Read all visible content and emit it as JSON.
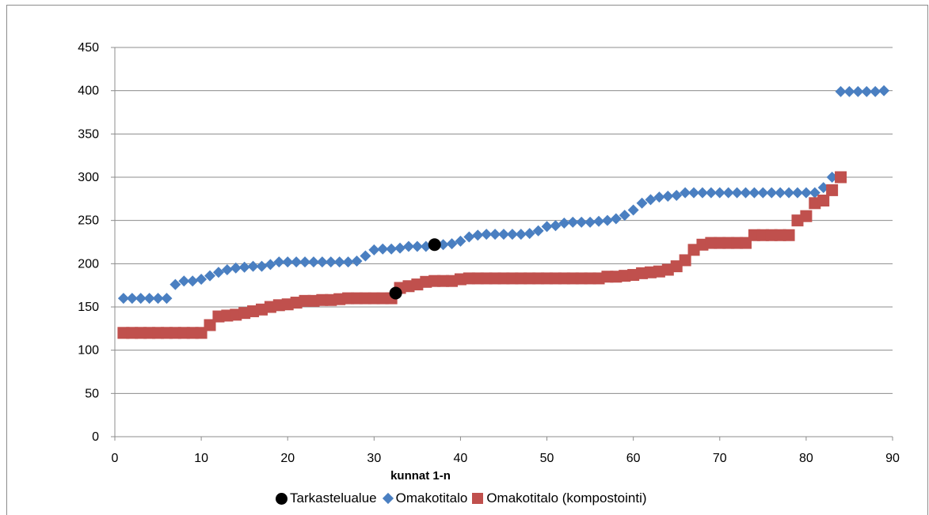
{
  "chart_data": {
    "type": "scatter",
    "xlabel": "kunnat 1-n",
    "ylabel": "",
    "xlim": [
      0,
      90
    ],
    "ylim": [
      0,
      450
    ],
    "x_ticks": [
      0,
      10,
      20,
      30,
      40,
      50,
      60,
      70,
      80,
      90
    ],
    "y_ticks": [
      0,
      50,
      100,
      150,
      200,
      250,
      300,
      350,
      400,
      450
    ],
    "grid": "horizontal",
    "legend_position": "bottom",
    "colors": {
      "Tarkastelualue": "#000000",
      "Omakotitalo": "#4a7fc1",
      "Omakotitalo (kompostointi)": "#c0504d",
      "grid": "#8c8c8c"
    },
    "series": [
      {
        "name": "Omakotitalo",
        "marker": "diamond",
        "points": [
          [
            1,
            160
          ],
          [
            2,
            160
          ],
          [
            3,
            160
          ],
          [
            4,
            160
          ],
          [
            5,
            160
          ],
          [
            6,
            160
          ],
          [
            7,
            176
          ],
          [
            8,
            180
          ],
          [
            9,
            180
          ],
          [
            10,
            182
          ],
          [
            11,
            186
          ],
          [
            12,
            190
          ],
          [
            13,
            193
          ],
          [
            14,
            195
          ],
          [
            15,
            196
          ],
          [
            16,
            197
          ],
          [
            17,
            197
          ],
          [
            18,
            199
          ],
          [
            19,
            202
          ],
          [
            20,
            202
          ],
          [
            21,
            202
          ],
          [
            22,
            202
          ],
          [
            23,
            202
          ],
          [
            24,
            202
          ],
          [
            25,
            202
          ],
          [
            26,
            202
          ],
          [
            27,
            202
          ],
          [
            28,
            203
          ],
          [
            29,
            209
          ],
          [
            30,
            216
          ],
          [
            31,
            217
          ],
          [
            32,
            217
          ],
          [
            33,
            218
          ],
          [
            34,
            220
          ],
          [
            35,
            220
          ],
          [
            36,
            220
          ],
          [
            37,
            222
          ],
          [
            38,
            222
          ],
          [
            39,
            223
          ],
          [
            40,
            226
          ],
          [
            41,
            231
          ],
          [
            42,
            233
          ],
          [
            43,
            234
          ],
          [
            44,
            234
          ],
          [
            45,
            234
          ],
          [
            46,
            234
          ],
          [
            47,
            234
          ],
          [
            48,
            235
          ],
          [
            49,
            238
          ],
          [
            50,
            243
          ],
          [
            51,
            244
          ],
          [
            52,
            247
          ],
          [
            53,
            248
          ],
          [
            54,
            248
          ],
          [
            55,
            248
          ],
          [
            56,
            249
          ],
          [
            57,
            250
          ],
          [
            58,
            252
          ],
          [
            59,
            256
          ],
          [
            60,
            262
          ],
          [
            61,
            270
          ],
          [
            62,
            274
          ],
          [
            63,
            277
          ],
          [
            64,
            278
          ],
          [
            65,
            279
          ],
          [
            66,
            282
          ],
          [
            67,
            282
          ],
          [
            68,
            282
          ],
          [
            69,
            282
          ],
          [
            70,
            282
          ],
          [
            71,
            282
          ],
          [
            72,
            282
          ],
          [
            73,
            282
          ],
          [
            74,
            282
          ],
          [
            75,
            282
          ],
          [
            76,
            282
          ],
          [
            77,
            282
          ],
          [
            78,
            282
          ],
          [
            79,
            282
          ],
          [
            80,
            282
          ],
          [
            81,
            282
          ],
          [
            82,
            288
          ],
          [
            83,
            300
          ],
          [
            84,
            399
          ],
          [
            85,
            399
          ],
          [
            86,
            399
          ],
          [
            87,
            399
          ],
          [
            88,
            399
          ],
          [
            89,
            400
          ]
        ]
      },
      {
        "name": "Omakotitalo (kompostointi)",
        "marker": "square",
        "points": [
          [
            1,
            120
          ],
          [
            2,
            120
          ],
          [
            3,
            120
          ],
          [
            4,
            120
          ],
          [
            5,
            120
          ],
          [
            6,
            120
          ],
          [
            7,
            120
          ],
          [
            8,
            120
          ],
          [
            9,
            120
          ],
          [
            10,
            120
          ],
          [
            11,
            129
          ],
          [
            12,
            139
          ],
          [
            13,
            140
          ],
          [
            14,
            141
          ],
          [
            15,
            143
          ],
          [
            16,
            145
          ],
          [
            17,
            147
          ],
          [
            18,
            150
          ],
          [
            19,
            152
          ],
          [
            20,
            153
          ],
          [
            21,
            155
          ],
          [
            22,
            157
          ],
          [
            23,
            157
          ],
          [
            24,
            158
          ],
          [
            25,
            158
          ],
          [
            26,
            159
          ],
          [
            27,
            160
          ],
          [
            28,
            160
          ],
          [
            29,
            160
          ],
          [
            30,
            160
          ],
          [
            31,
            160
          ],
          [
            32,
            160
          ],
          [
            33,
            172
          ],
          [
            34,
            174
          ],
          [
            35,
            176
          ],
          [
            36,
            179
          ],
          [
            37,
            180
          ],
          [
            38,
            180
          ],
          [
            39,
            180
          ],
          [
            40,
            182
          ],
          [
            41,
            183
          ],
          [
            42,
            183
          ],
          [
            43,
            183
          ],
          [
            44,
            183
          ],
          [
            45,
            183
          ],
          [
            46,
            183
          ],
          [
            47,
            183
          ],
          [
            48,
            183
          ],
          [
            49,
            183
          ],
          [
            50,
            183
          ],
          [
            51,
            183
          ],
          [
            52,
            183
          ],
          [
            53,
            183
          ],
          [
            54,
            183
          ],
          [
            55,
            183
          ],
          [
            56,
            183
          ],
          [
            57,
            185
          ],
          [
            58,
            185
          ],
          [
            59,
            186
          ],
          [
            60,
            187
          ],
          [
            61,
            189
          ],
          [
            62,
            190
          ],
          [
            63,
            191
          ],
          [
            64,
            193
          ],
          [
            65,
            197
          ],
          [
            66,
            204
          ],
          [
            67,
            216
          ],
          [
            68,
            222
          ],
          [
            69,
            224
          ],
          [
            70,
            224
          ],
          [
            71,
            224
          ],
          [
            72,
            224
          ],
          [
            73,
            224
          ],
          [
            74,
            233
          ],
          [
            75,
            233
          ],
          [
            76,
            233
          ],
          [
            77,
            233
          ],
          [
            78,
            233
          ],
          [
            79,
            250
          ],
          [
            80,
            255
          ],
          [
            81,
            270
          ],
          [
            82,
            273
          ],
          [
            83,
            285
          ],
          [
            84,
            300
          ]
        ]
      },
      {
        "name": "Tarkastelualue",
        "marker": "circle",
        "points": [
          [
            37,
            222
          ],
          [
            32.5,
            166
          ]
        ]
      }
    ]
  },
  "legend": {
    "item1": "Tarkastelualue",
    "item2": "Omakotitalo",
    "item3": "Omakotitalo (kompostointi)"
  }
}
